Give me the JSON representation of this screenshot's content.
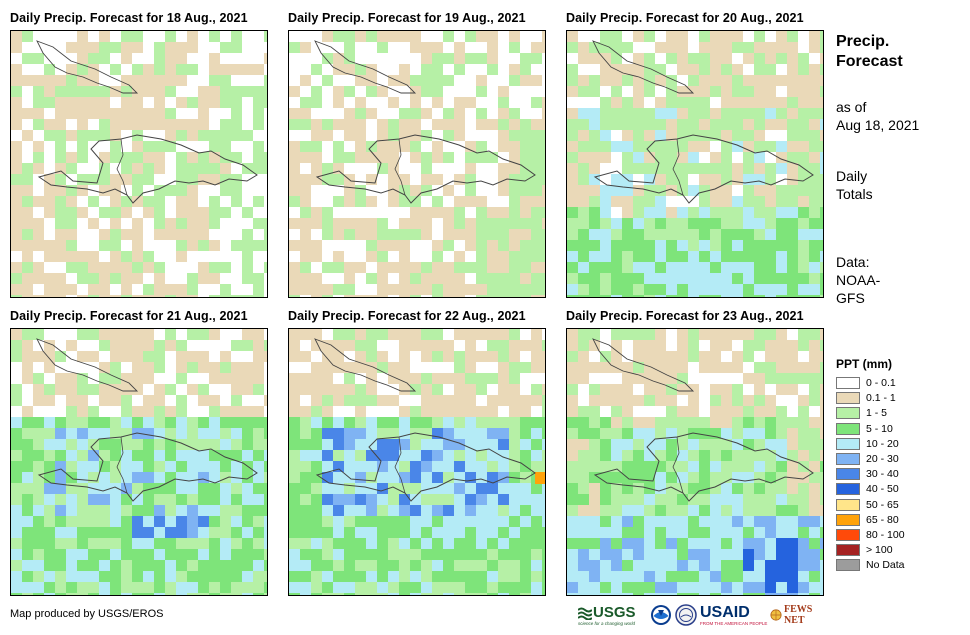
{
  "panels": [
    {
      "title": "Daily Precip. Forecast for 18 Aug., 2021",
      "pattern": "dry1"
    },
    {
      "title": "Daily Precip. Forecast for 19 Aug., 2021",
      "pattern": "dry2"
    },
    {
      "title": "Daily Precip. Forecast for 20 Aug., 2021",
      "pattern": "mid"
    },
    {
      "title": "Daily Precip. Forecast for 21 Aug., 2021",
      "pattern": "wet1"
    },
    {
      "title": "Daily Precip. Forecast for 22 Aug., 2021",
      "pattern": "wet2"
    },
    {
      "title": "Daily Precip. Forecast for 23 Aug., 2021",
      "pattern": "wet3"
    }
  ],
  "side": {
    "title_line1": "Precip.",
    "title_line2": "Forecast",
    "asof_line1": "as of",
    "asof_line2": "Aug 18, 2021",
    "totals_line1": "Daily",
    "totals_line2": "Totals",
    "data_line1": "Data:",
    "data_line2": "NOAA-",
    "data_line3": "GFS"
  },
  "legend": {
    "title": "PPT (mm)",
    "items": [
      {
        "label": "0 - 0.1",
        "color": "#ffffff"
      },
      {
        "label": "0.1 - 1",
        "color": "#ead9b8"
      },
      {
        "label": "1 - 5",
        "color": "#b6f0a6"
      },
      {
        "label": "5 - 10",
        "color": "#7ee47a"
      },
      {
        "label": "10 - 20",
        "color": "#b4ebf6"
      },
      {
        "label": "20 - 30",
        "color": "#7fb3f3"
      },
      {
        "label": "30 - 40",
        "color": "#4a86e8"
      },
      {
        "label": "40 - 50",
        "color": "#2563de"
      },
      {
        "label": "50 - 65",
        "color": "#ffe58a"
      },
      {
        "label": "65 - 80",
        "color": "#ffa20a"
      },
      {
        "label": "80 - 100",
        "color": "#ff4a0a"
      },
      {
        "label": "> 100",
        "color": "#a52222"
      },
      {
        "label": "No Data",
        "color": "#9c9c9c"
      }
    ]
  },
  "credit": "Map produced by USGS/EROS",
  "logos": {
    "usgs": "USGS",
    "usgs_tag": "science for a changing world",
    "usaid": "USAID",
    "usaid_tag": "FROM THE AMERICAN PEOPLE",
    "fewsnet": "FEWS NET"
  }
}
